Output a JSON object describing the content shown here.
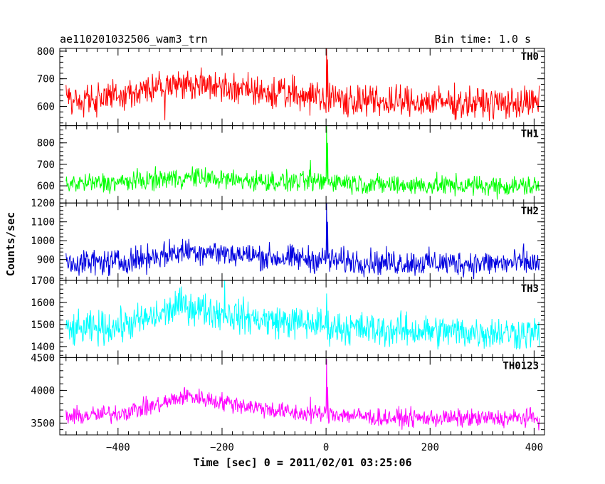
{
  "header": {
    "title": "ae110201032506_wam3_trn",
    "bin_time": "Bin time: 1.0 s"
  },
  "chart_data": {
    "type": "line",
    "title": "ae110201032506_wam3_trn",
    "xlabel": "Time [sec] 0 = 2011/02/01 03:25:06",
    "ylabel": "Counts/sec",
    "xlim": [
      -512,
      420
    ],
    "x_ticks": [
      -400,
      -200,
      0,
      200,
      400
    ],
    "x_tick_labels": [
      "−400",
      "−200",
      "0",
      "200",
      "400"
    ],
    "x_data_range": [
      -500,
      410
    ],
    "bin_time_s": 1.0,
    "grid": false,
    "panels": [
      {
        "name": "TH0",
        "color": "#ff0000",
        "ylim": [
          530,
          810
        ],
        "y_ticks": [
          600,
          700,
          800
        ],
        "y_tick_labels": [
          "600",
          "700",
          "800"
        ],
        "trend": [
          [
            -500,
            625
          ],
          [
            -400,
            640
          ],
          [
            -300,
            675
          ],
          [
            -250,
            680
          ],
          [
            -200,
            670
          ],
          [
            -150,
            655
          ],
          [
            -50,
            640
          ],
          [
            -5,
            640
          ],
          [
            5,
            630
          ],
          [
            100,
            615
          ],
          [
            200,
            615
          ],
          [
            300,
            612
          ],
          [
            410,
            612
          ]
        ],
        "noise_amplitude": 45,
        "spikes": [
          {
            "x": 1,
            "y": 810
          },
          {
            "x": 3,
            "y": 770
          },
          {
            "x": -310,
            "y": 550
          }
        ]
      },
      {
        "name": "TH1",
        "color": "#00ff00",
        "ylim": [
          520,
          880
        ],
        "y_ticks": [
          600,
          700,
          800
        ],
        "y_tick_labels": [
          "600",
          "700",
          "800"
        ],
        "trend": [
          [
            -500,
            610
          ],
          [
            -400,
            615
          ],
          [
            -300,
            635
          ],
          [
            -250,
            640
          ],
          [
            -200,
            630
          ],
          [
            -100,
            620
          ],
          [
            -5,
            618
          ],
          [
            5,
            625
          ],
          [
            100,
            605
          ],
          [
            300,
            600
          ],
          [
            410,
            598
          ]
        ],
        "noise_amplitude": 38,
        "spikes": [
          {
            "x": 1,
            "y": 880
          },
          {
            "x": 3,
            "y": 800
          },
          {
            "x": -30,
            "y": 720
          }
        ]
      },
      {
        "name": "TH2",
        "color": "#0000e0",
        "ylim": [
          790,
          1200
        ],
        "y_ticks": [
          900,
          1000,
          1100,
          1200
        ],
        "y_tick_labels": [
          "900",
          "1000",
          "1100",
          "1200"
        ],
        "trend": [
          [
            -500,
            885
          ],
          [
            -400,
            885
          ],
          [
            -300,
            930
          ],
          [
            -260,
            950
          ],
          [
            -200,
            935
          ],
          [
            -100,
            910
          ],
          [
            -5,
            900
          ],
          [
            5,
            895
          ],
          [
            100,
            885
          ],
          [
            300,
            880
          ],
          [
            410,
            880
          ]
        ],
        "noise_amplitude": 55,
        "spikes": [
          {
            "x": 1,
            "y": 1200
          },
          {
            "x": 3,
            "y": 1100
          },
          {
            "x": 380,
            "y": 985
          }
        ]
      },
      {
        "name": "TH3",
        "color": "#00ffff",
        "ylim": [
          1350,
          1700
        ],
        "y_ticks": [
          1400,
          1500,
          1600,
          1700
        ],
        "y_tick_labels": [
          "1400",
          "1500",
          "1600",
          "1700"
        ],
        "trend": [
          [
            -500,
            1470
          ],
          [
            -400,
            1490
          ],
          [
            -320,
            1540
          ],
          [
            -280,
            1590
          ],
          [
            -240,
            1570
          ],
          [
            -200,
            1550
          ],
          [
            -120,
            1520
          ],
          [
            -5,
            1500
          ],
          [
            5,
            1490
          ],
          [
            100,
            1475
          ],
          [
            300,
            1465
          ],
          [
            410,
            1460
          ]
        ],
        "noise_amplitude": 60,
        "spikes": [
          {
            "x": 1,
            "y": 1640
          },
          {
            "x": -195,
            "y": 1700
          }
        ]
      },
      {
        "name": "TH0123",
        "color": "#ff00ff",
        "ylim": [
          3320,
          4500
        ],
        "y_ticks": [
          3500,
          4000,
          4500
        ],
        "y_tick_labels": [
          "3500",
          "4000",
          "4500"
        ],
        "trend": [
          [
            -500,
            3590
          ],
          [
            -400,
            3650
          ],
          [
            -320,
            3780
          ],
          [
            -270,
            3920
          ],
          [
            -220,
            3850
          ],
          [
            -150,
            3760
          ],
          [
            -60,
            3650
          ],
          [
            -5,
            3640
          ],
          [
            5,
            3650
          ],
          [
            100,
            3580
          ],
          [
            300,
            3570
          ],
          [
            410,
            3580
          ]
        ],
        "noise_amplitude": 110,
        "spikes": [
          {
            "x": 1,
            "y": 4480
          },
          {
            "x": 3,
            "y": 4050
          },
          {
            "x": -30,
            "y": 3900
          }
        ]
      }
    ]
  }
}
